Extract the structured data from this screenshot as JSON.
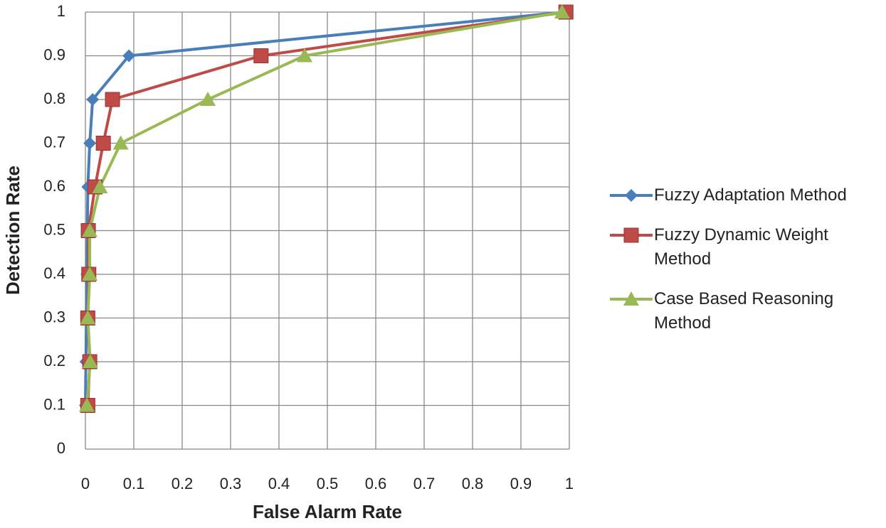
{
  "chart_data": {
    "type": "line",
    "xlabel": "False Alarm Rate",
    "ylabel": "Detection Rate",
    "xlim": [
      0,
      1
    ],
    "ylim": [
      0,
      1
    ],
    "xticks": [
      0,
      0.1,
      0.2,
      0.3,
      0.4,
      0.5,
      0.6,
      0.7,
      0.8,
      0.9,
      1
    ],
    "yticks": [
      0,
      0.1,
      0.2,
      0.3,
      0.4,
      0.5,
      0.6,
      0.7,
      0.8,
      0.9,
      1
    ],
    "grid": true,
    "legend": "right",
    "series": [
      {
        "name": "Fuzzy Adaptation Method",
        "color": "#4a7ebb",
        "marker": "diamond",
        "x": [
          0,
          0.001,
          0.002,
          0.003,
          0.004,
          0.005,
          0.009,
          0.015,
          0.09,
          0.99
        ],
        "values": [
          0.1,
          0.2,
          0.3,
          0.4,
          0.5,
          0.6,
          0.7,
          0.8,
          0.9,
          1
        ]
      },
      {
        "name": "Fuzzy Dynamic Weight Method",
        "color": "#be4b48",
        "marker": "square",
        "x": [
          0.005,
          0.009,
          0.005,
          0.007,
          0.006,
          0.02,
          0.037,
          0.056,
          0.363,
          0.993
        ],
        "values": [
          0.1,
          0.2,
          0.3,
          0.4,
          0.5,
          0.6,
          0.7,
          0.8,
          0.9,
          1
        ]
      },
      {
        "name": "Case Based Reasoning Method",
        "color": "#98b954",
        "marker": "triangle",
        "x": [
          0.003,
          0.01,
          0.005,
          0.009,
          0.009,
          0.03,
          0.073,
          0.253,
          0.453,
          0.985
        ],
        "values": [
          0.1,
          0.2,
          0.3,
          0.4,
          0.5,
          0.6,
          0.7,
          0.8,
          0.9,
          1
        ]
      }
    ]
  }
}
